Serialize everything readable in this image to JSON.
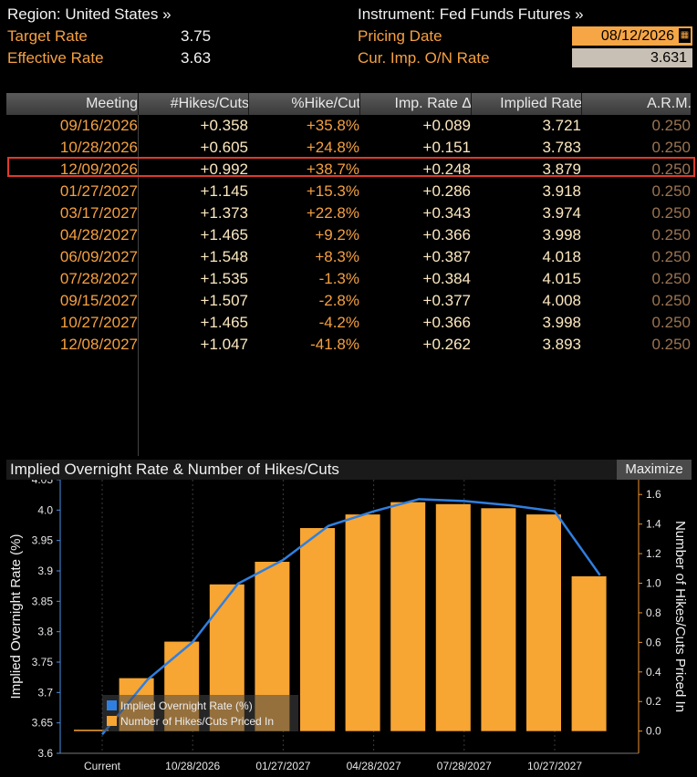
{
  "header": {
    "region_label": "Region: United States »",
    "instrument_label": "Instrument: Fed Funds Futures »",
    "target_rate_label": "Target Rate",
    "target_rate_value": "3.75",
    "effective_rate_label": "Effective Rate",
    "effective_rate_value": "3.63",
    "pricing_date_label": "Pricing Date",
    "pricing_date_value": "08/12/2026",
    "on_rate_label": "Cur. Imp. O/N Rate",
    "on_rate_value": "3.631"
  },
  "table": {
    "columns": [
      "Meeting",
      "#Hikes/Cuts",
      "%Hike/Cut",
      "Imp. Rate Δ",
      "Implied Rate",
      "A.R.M."
    ],
    "rows": [
      [
        "09/16/2026",
        "+0.358",
        "+35.8%",
        "+0.089",
        "3.721",
        "0.250"
      ],
      [
        "10/28/2026",
        "+0.605",
        "+24.8%",
        "+0.151",
        "3.783",
        "0.250"
      ],
      [
        "12/09/2026",
        "+0.992",
        "+38.7%",
        "+0.248",
        "3.879",
        "0.250"
      ],
      [
        "01/27/2027",
        "+1.145",
        "+15.3%",
        "+0.286",
        "3.918",
        "0.250"
      ],
      [
        "03/17/2027",
        "+1.373",
        "+22.8%",
        "+0.343",
        "3.974",
        "0.250"
      ],
      [
        "04/28/2027",
        "+1.465",
        "+9.2%",
        "+0.366",
        "3.998",
        "0.250"
      ],
      [
        "06/09/2027",
        "+1.548",
        "+8.3%",
        "+0.387",
        "4.018",
        "0.250"
      ],
      [
        "07/28/2027",
        "+1.535",
        "-1.3%",
        "+0.384",
        "4.015",
        "0.250"
      ],
      [
        "09/15/2027",
        "+1.507",
        "-2.8%",
        "+0.377",
        "4.008",
        "0.250"
      ],
      [
        "10/27/2027",
        "+1.465",
        "-4.2%",
        "+0.366",
        "3.998",
        "0.250"
      ],
      [
        "12/08/2027",
        "+1.047",
        "-41.8%",
        "+0.262",
        "3.893",
        "0.250"
      ]
    ],
    "highlighted_row": 2
  },
  "chart_panel": {
    "title": "Implied Overnight Rate & Number of Hikes/Cuts",
    "maximize_label": "Maximize"
  },
  "chart_data": {
    "type": "bar",
    "title": "Implied Overnight Rate & Number of Hikes/Cuts",
    "categories": [
      "Current",
      "09/16/2026",
      "10/28/2026",
      "12/09/2026",
      "01/27/2027",
      "03/17/2027",
      "04/28/2027",
      "06/09/2027",
      "07/28/2027",
      "09/15/2027",
      "10/27/2027",
      "12/08/2027"
    ],
    "x_tick_labels": [
      "Current",
      "10/28/2026",
      "01/27/2027",
      "04/28/2027",
      "07/28/2027",
      "10/27/2027"
    ],
    "series": [
      {
        "name": "Implied Overnight Rate (%)",
        "type": "line",
        "axis": "left",
        "color": "#2f7fe0",
        "values": [
          3.631,
          3.721,
          3.783,
          3.879,
          3.918,
          3.974,
          3.998,
          4.018,
          4.015,
          4.008,
          3.998,
          3.893
        ]
      },
      {
        "name": "Number of Hikes/Cuts Priced In",
        "type": "bar",
        "axis": "right",
        "color": "#f7a533",
        "values": [
          0.0,
          0.358,
          0.605,
          0.992,
          1.145,
          1.373,
          1.465,
          1.548,
          1.535,
          1.507,
          1.465,
          1.047
        ]
      }
    ],
    "ylabel": "Implied Overnight Rate (%)",
    "y2label": "Number of Hikes/Cuts Priced In",
    "ylim": [
      3.6,
      4.05
    ],
    "y_ticks": [
      "3.6",
      "3.65",
      "3.7",
      "3.75",
      "3.8",
      "3.85",
      "3.9",
      "3.95",
      "4.0",
      "4.05"
    ],
    "y2lim": [
      -0.15,
      1.7
    ],
    "y2_ticks": [
      "0.0",
      "0.2",
      "0.4",
      "0.6",
      "0.8",
      "1.0",
      "1.2",
      "1.4",
      "1.6"
    ],
    "legend": "bottom-left",
    "grid": true
  }
}
